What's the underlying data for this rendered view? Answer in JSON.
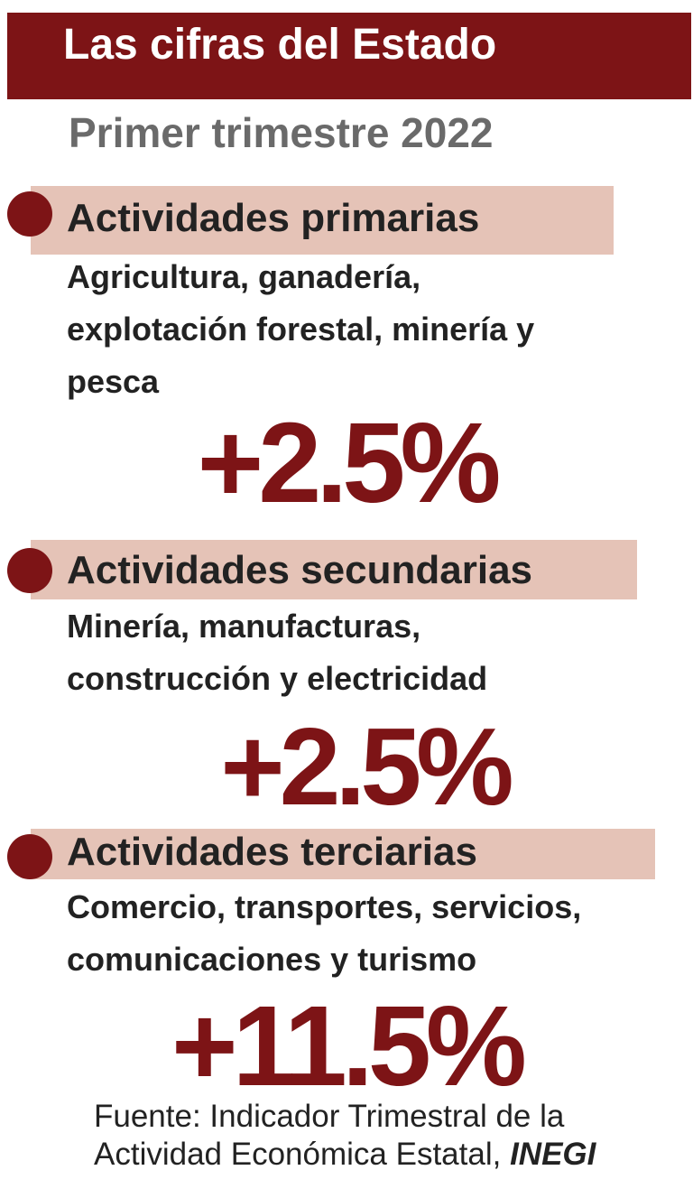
{
  "header": {
    "title": "Las cifras del Estado",
    "subtitle": "Primer trimestre 2022"
  },
  "sections": [
    {
      "title": "Actividades primarias",
      "description_lines": [
        "Agricultura, ganadería,",
        "explotación forestal, minería y",
        "pesca"
      ],
      "value": "+2.5%"
    },
    {
      "title": "Actividades secundarias",
      "description_lines": [
        "Minería, manufacturas,",
        "construcción y electricidad"
      ],
      "value": "+2.5%"
    },
    {
      "title": "Actividades terciarias",
      "description_lines": [
        "Comercio, transportes, servicios,",
        "comunicaciones y turismo"
      ],
      "value": "+11.5%"
    }
  ],
  "source": {
    "line1": "Fuente: Indicador Trimestral de la",
    "line2": "Actividad Económica Estatal, ",
    "org": "INEGI"
  },
  "colors": {
    "accent": "#7d1416",
    "band": "#e5c3b7",
    "subtitle": "#6a6a6a",
    "text": "#222222"
  }
}
